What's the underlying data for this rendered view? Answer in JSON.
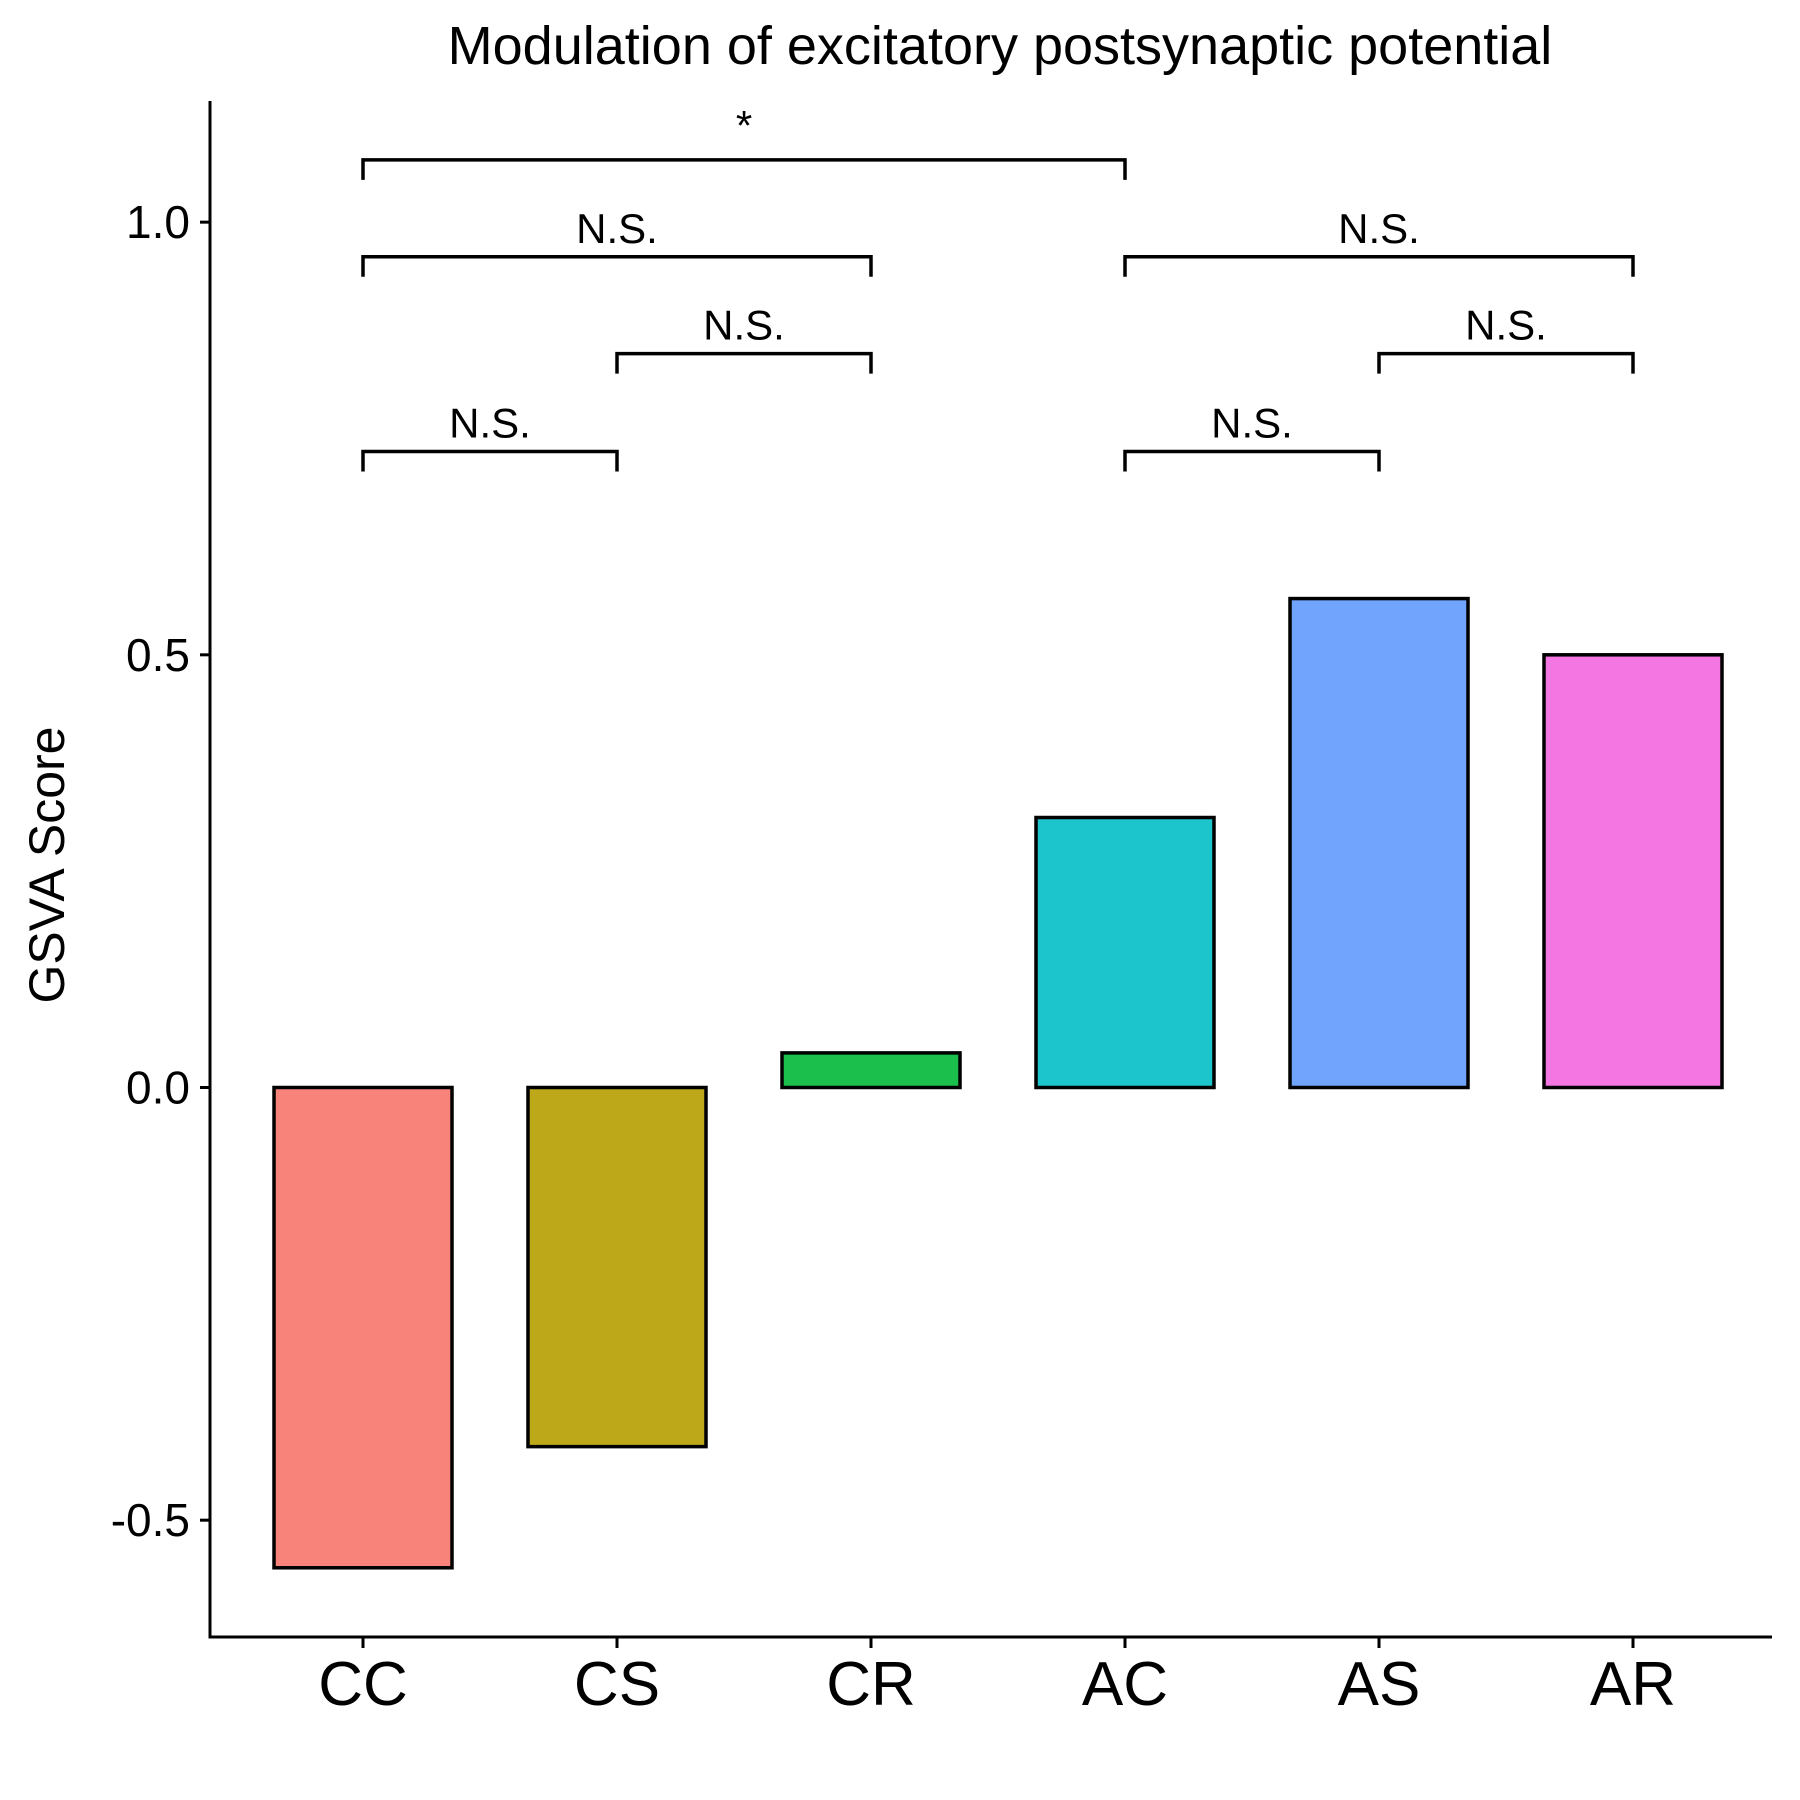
{
  "chart_data": {
    "type": "bar",
    "title": "Modulation of excitatory postsynaptic potential",
    "xlabel": "",
    "ylabel": "GSVA Score",
    "categories": [
      "CC",
      "CS",
      "CR",
      "AC",
      "AS",
      "AR"
    ],
    "values": [
      -0.555,
      -0.415,
      0.04,
      0.312,
      0.565,
      0.5
    ],
    "colors": [
      "#F8837B",
      "#BDA81A",
      "#1ABF4C",
      "#1CC4CB",
      "#71A4FC",
      "#F476E3"
    ],
    "ylim": [
      -0.635,
      1.14
    ],
    "y_ticks": [
      "-0.5",
      "0.0",
      "0.5",
      "1.0"
    ],
    "grid": false,
    "legend": "none",
    "comparisons": [
      {
        "from": "CC",
        "to": "CS",
        "y": 0.735,
        "label": "N.S."
      },
      {
        "from": "CS",
        "to": "CR",
        "y": 0.848,
        "label": "N.S."
      },
      {
        "from": "CC",
        "to": "CR",
        "y": 0.96,
        "label": "N.S."
      },
      {
        "from": "CC",
        "to": "AC",
        "y": 1.072,
        "label": "*"
      },
      {
        "from": "AC",
        "to": "AS",
        "y": 0.735,
        "label": "N.S."
      },
      {
        "from": "AS",
        "to": "AR",
        "y": 0.848,
        "label": "N.S."
      },
      {
        "from": "AC",
        "to": "AR",
        "y": 0.96,
        "label": "N.S."
      }
    ]
  }
}
